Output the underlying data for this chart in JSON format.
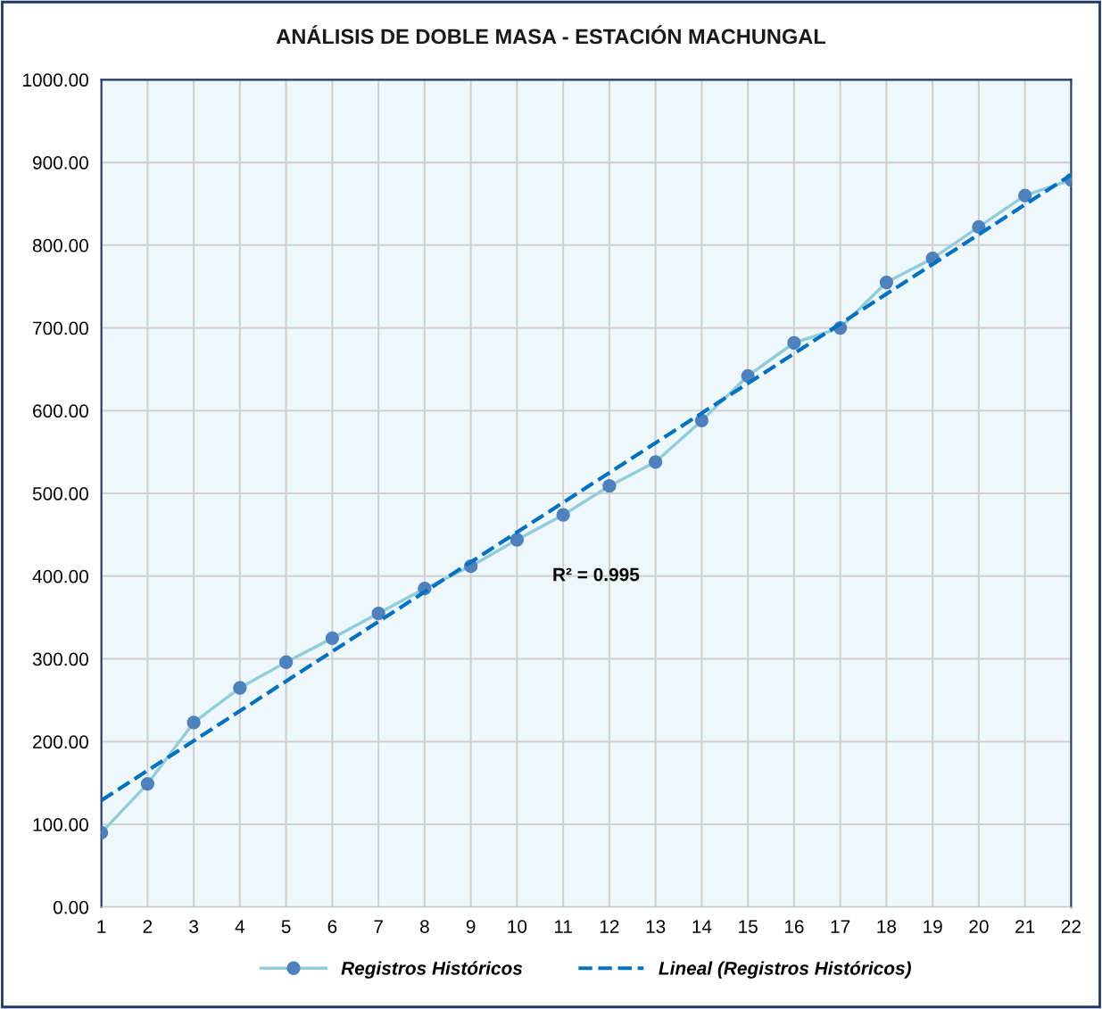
{
  "chart_data": {
    "type": "line",
    "title": "ANÁLISIS DE DOBLE MASA - ESTACIÓN MACHUNGAL",
    "x": [
      1,
      2,
      3,
      4,
      5,
      6,
      7,
      8,
      9,
      10,
      11,
      12,
      13,
      14,
      15,
      16,
      17,
      18,
      19,
      20,
      21,
      22
    ],
    "series": [
      {
        "name": "Registros Históricos",
        "color": "#92cddc",
        "marker": "circle",
        "line_style": "solid",
        "values": [
          90,
          149,
          223,
          265,
          296,
          325,
          355,
          385,
          412,
          444,
          474,
          509,
          538,
          588,
          642,
          682,
          700,
          755,
          784,
          822,
          860,
          879
        ]
      },
      {
        "name": "Lineal (Registros Históricos)",
        "color": "#0070c0",
        "marker": "none",
        "line_style": "dashed",
        "x": [
          1,
          22
        ],
        "values": [
          129,
          885
        ]
      }
    ],
    "xlim": [
      1,
      22
    ],
    "xticks": [
      1,
      2,
      3,
      4,
      5,
      6,
      7,
      8,
      9,
      10,
      11,
      12,
      13,
      14,
      15,
      16,
      17,
      18,
      19,
      20,
      21,
      22
    ],
    "ylim": [
      0,
      1000
    ],
    "yticks": [
      {
        "value": 0,
        "label": "0.00"
      },
      {
        "value": 100,
        "label": "100.00"
      },
      {
        "value": 200,
        "label": "200.00"
      },
      {
        "value": 300,
        "label": "300.00"
      },
      {
        "value": 400,
        "label": "400.00"
      },
      {
        "value": 500,
        "label": "500.00"
      },
      {
        "value": 600,
        "label": "600.00"
      },
      {
        "value": 700,
        "label": "700.00"
      },
      {
        "value": 800,
        "label": "800.00"
      },
      {
        "value": 900,
        "label": "900.00"
      },
      {
        "value": 1000,
        "label": "1000.00"
      }
    ],
    "grid": true,
    "legend": "bottom",
    "annotations": [
      "R² = 0.995"
    ]
  }
}
